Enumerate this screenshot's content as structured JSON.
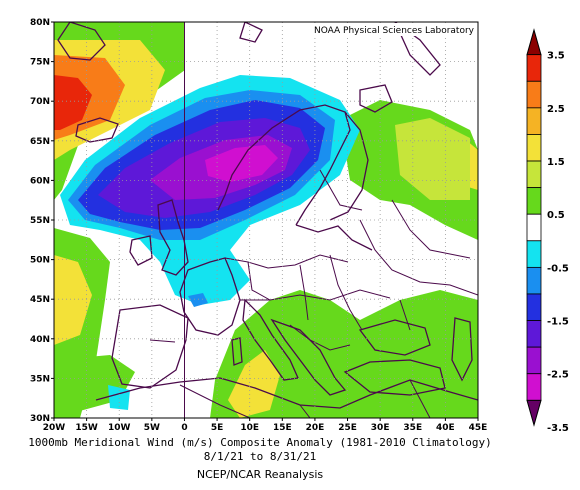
{
  "map": {
    "credit": "NOAA Physical Sciences Laboratory",
    "lat_labels": [
      "80N",
      "75N",
      "70N",
      "65N",
      "60N",
      "55N",
      "50N",
      "45N",
      "40N",
      "35N",
      "30N"
    ],
    "lon_labels": [
      "20W",
      "15W",
      "10W",
      "5W",
      "0",
      "5E",
      "10E",
      "15E",
      "20E",
      "25E",
      "30E",
      "35E",
      "40E",
      "45E"
    ],
    "extent": {
      "lon_min": -20,
      "lon_max": 45,
      "lat_min": 30,
      "lat_max": 80
    }
  },
  "colorbar": {
    "labels": [
      "3.5",
      "2.5",
      "1.5",
      "0.5",
      "-0.5",
      "-1.5",
      "-2.5",
      "-3.5"
    ],
    "colors": [
      "#8b0000",
      "#e8260a",
      "#f87c18",
      "#f5b324",
      "#f3e138",
      "#c6e53a",
      "#66d91c",
      "#ffffff",
      "#14e3f0",
      "#1a8ff0",
      "#2330e0",
      "#5e18d8",
      "#9a10d0",
      "#d00fd0",
      "#640064"
    ]
  },
  "caption": {
    "title": "1000mb Meridional Wind (m/s) Composite Anomaly (1981-2010 Climatology)",
    "dates": "8/1/21 to 8/31/21",
    "source": "NCEP/NCAR Reanalysis"
  }
}
